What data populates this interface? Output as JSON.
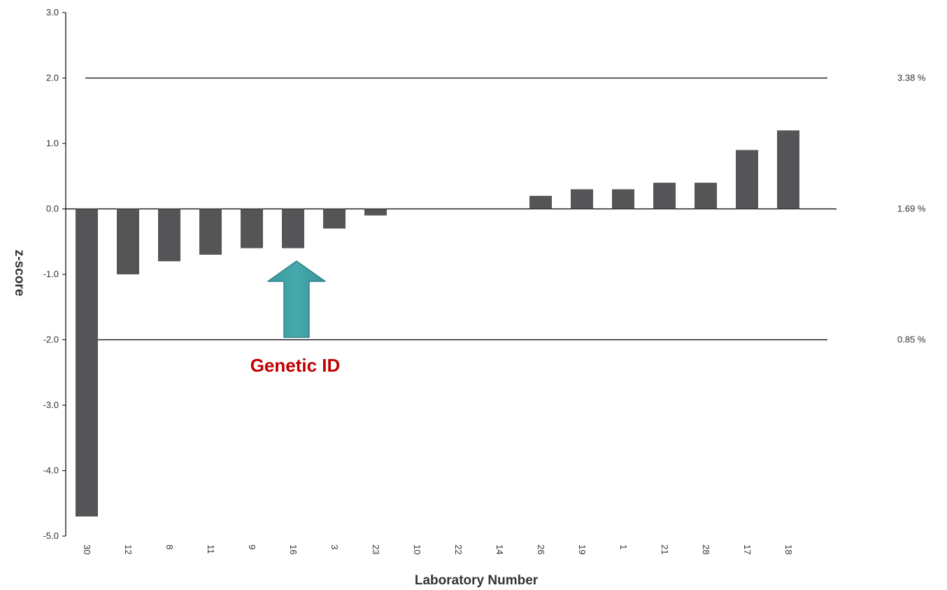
{
  "chart_data": {
    "type": "bar",
    "categories": [
      "30",
      "12",
      "8",
      "11",
      "9",
      "16",
      "3",
      "23",
      "10",
      "22",
      "14",
      "26",
      "19",
      "1",
      "21",
      "28",
      "17",
      "18"
    ],
    "values": [
      -4.7,
      -1.0,
      -0.8,
      -0.7,
      -0.6,
      -0.6,
      -0.3,
      -0.1,
      0,
      0,
      0,
      0.2,
      0.3,
      0.3,
      0.4,
      0.4,
      0.9,
      1.2
    ],
    "xlabel": "Laboratory Number",
    "ylabel": "z-score",
    "ylim": [
      -5.0,
      3.0
    ],
    "yticks": [
      "3.0",
      "2.0",
      "1.0",
      "0.0",
      "-1.0",
      "-2.0",
      "-3.0",
      "-4.0",
      "-5.0"
    ],
    "ytick_values": [
      3,
      2,
      1,
      0,
      -1,
      -2,
      -3,
      -4,
      -5
    ],
    "reference_lines": [
      {
        "z": 2.0,
        "label": "3.38 %"
      },
      {
        "z": 0.0,
        "label": "1.69 %"
      },
      {
        "z": -2.0,
        "label": "0.85 %"
      }
    ],
    "annotation": {
      "text": "Genetic ID",
      "category": "16",
      "arrow": "up-arrow"
    },
    "grid": false,
    "legend": "none",
    "colors": {
      "bar": "#555558",
      "axis": "#000000",
      "annotation_text": "#c00000",
      "arrow_fill": "#46a9ad",
      "arrow_stroke": "#2f8488"
    }
  }
}
